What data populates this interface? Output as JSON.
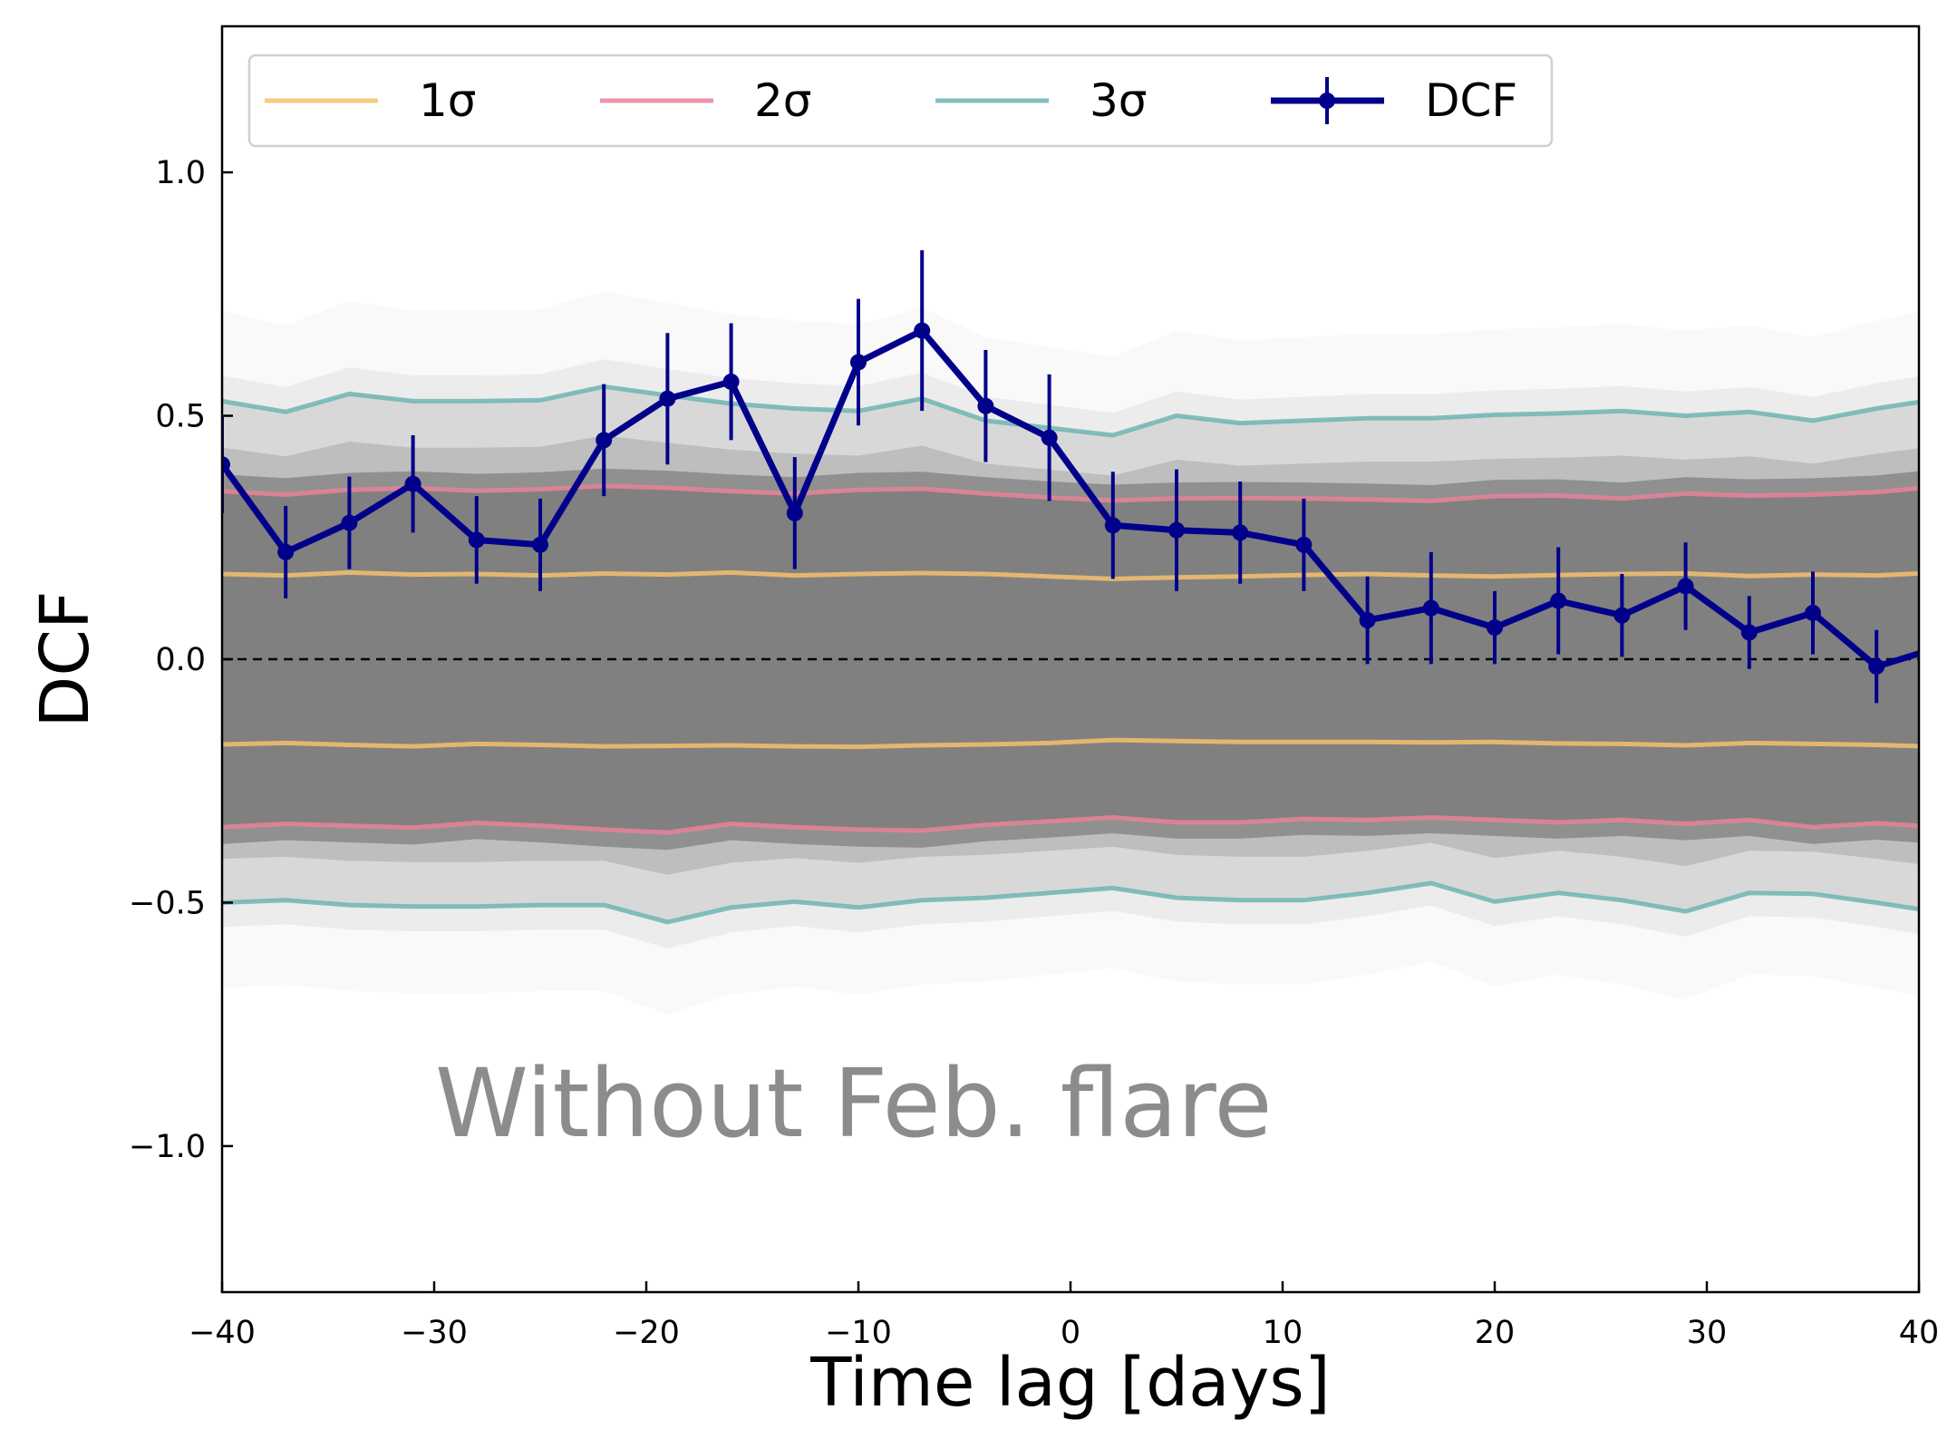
{
  "chart_data": {
    "type": "line",
    "title": "",
    "xlabel": "Time lag [days]",
    "ylabel": "DCF",
    "xlim": [
      -40,
      40
    ],
    "ylim": [
      -1.3,
      1.3
    ],
    "xticks": [
      -40,
      -30,
      -20,
      -10,
      0,
      10,
      20,
      30,
      40
    ],
    "yticks": [
      -1.0,
      -0.5,
      0.0,
      0.5,
      1.0
    ],
    "xtick_labels": [
      "−40",
      "−30",
      "−20",
      "−10",
      "0",
      "10",
      "20",
      "30",
      "40"
    ],
    "ytick_labels": [
      "−1.0",
      "−0.5",
      "0.0",
      "0.5",
      "1.0"
    ],
    "annotation": "Without Feb. flare",
    "legend_position": "top",
    "grid": false,
    "zero_line": 0.0,
    "x": [
      -40,
      -37,
      -34,
      -31,
      -28,
      -25,
      -22,
      -19,
      -16,
      -13,
      -10,
      -7,
      -4,
      -1,
      2,
      5,
      8,
      11,
      14,
      17,
      20,
      23,
      26,
      29,
      32,
      35,
      38,
      41
    ],
    "series": [
      {
        "name": "DCF",
        "color": "#00008b",
        "values": [
          0.4,
          0.22,
          0.28,
          0.36,
          0.245,
          0.235,
          0.45,
          0.535,
          0.57,
          0.3,
          0.61,
          0.675,
          0.52,
          0.455,
          0.275,
          0.265,
          0.26,
          0.235,
          0.08,
          0.105,
          0.065,
          0.12,
          0.09,
          0.15,
          0.055,
          0.095,
          -0.015,
          0.025
        ],
        "errors": [
          0.1,
          0.095,
          0.095,
          0.1,
          0.09,
          0.095,
          0.115,
          0.135,
          0.12,
          0.115,
          0.13,
          0.165,
          0.115,
          0.13,
          0.11,
          0.125,
          0.105,
          0.095,
          0.09,
          0.115,
          0.075,
          0.11,
          0.085,
          0.09,
          0.075,
          0.085,
          0.075,
          0.08
        ]
      },
      {
        "name": "1σ",
        "color": "#f5bf6e",
        "upper": [
          0.175,
          0.172,
          0.178,
          0.174,
          0.175,
          0.172,
          0.176,
          0.174,
          0.178,
          0.172,
          0.175,
          0.177,
          0.175,
          0.17,
          0.165,
          0.168,
          0.17,
          0.173,
          0.175,
          0.172,
          0.17,
          0.173,
          0.175,
          0.176,
          0.171,
          0.174,
          0.172,
          0.178
        ],
        "lower": [
          -0.175,
          -0.172,
          -0.176,
          -0.179,
          -0.174,
          -0.176,
          -0.179,
          -0.178,
          -0.177,
          -0.179,
          -0.18,
          -0.177,
          -0.175,
          -0.172,
          -0.166,
          -0.168,
          -0.17,
          -0.17,
          -0.17,
          -0.171,
          -0.17,
          -0.173,
          -0.174,
          -0.177,
          -0.172,
          -0.174,
          -0.176,
          -0.18
        ]
      },
      {
        "name": "2σ",
        "color": "#e8839a",
        "upper": [
          0.345,
          0.338,
          0.348,
          0.351,
          0.346,
          0.349,
          0.356,
          0.352,
          0.345,
          0.34,
          0.348,
          0.35,
          0.34,
          0.332,
          0.326,
          0.33,
          0.331,
          0.33,
          0.328,
          0.325,
          0.335,
          0.336,
          0.33,
          0.34,
          0.336,
          0.338,
          0.343,
          0.355
        ],
        "lower": [
          -0.345,
          -0.338,
          -0.342,
          -0.346,
          -0.336,
          -0.342,
          -0.35,
          -0.356,
          -0.338,
          -0.345,
          -0.35,
          -0.352,
          -0.34,
          -0.333,
          -0.325,
          -0.335,
          -0.335,
          -0.328,
          -0.33,
          -0.325,
          -0.33,
          -0.335,
          -0.33,
          -0.338,
          -0.33,
          -0.345,
          -0.337,
          -0.345
        ]
      },
      {
        "name": "3σ",
        "color": "#6eb5b4",
        "upper": [
          0.53,
          0.508,
          0.545,
          0.53,
          0.53,
          0.532,
          0.56,
          0.542,
          0.525,
          0.515,
          0.51,
          0.535,
          0.49,
          0.475,
          0.46,
          0.5,
          0.485,
          0.49,
          0.495,
          0.495,
          0.502,
          0.505,
          0.51,
          0.5,
          0.508,
          0.49,
          0.515,
          0.535
        ],
        "lower": [
          -0.5,
          -0.495,
          -0.505,
          -0.508,
          -0.508,
          -0.505,
          -0.505,
          -0.54,
          -0.51,
          -0.498,
          -0.51,
          -0.495,
          -0.49,
          -0.48,
          -0.47,
          -0.49,
          -0.495,
          -0.495,
          -0.48,
          -0.46,
          -0.498,
          -0.48,
          -0.495,
          -0.518,
          -0.48,
          -0.482,
          -0.5,
          -0.52
        ]
      }
    ]
  }
}
